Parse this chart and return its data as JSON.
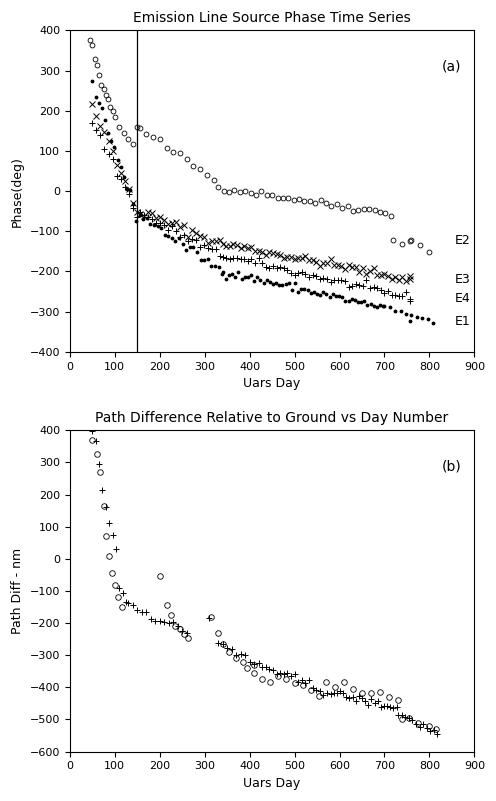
{
  "title_a": "Emission Line Source Phase Time Series",
  "title_b": "Path Difference Relative to Ground vs Day Number",
  "xlabel": "Uars Day",
  "ylabel_a": "Phase(deg)",
  "ylabel_b": "Path Diff - nm",
  "xlim": [
    0,
    900
  ],
  "ylim_a": [
    -400,
    400
  ],
  "ylim_b": [
    -600,
    400
  ],
  "xticks": [
    0,
    100,
    200,
    300,
    400,
    500,
    600,
    700,
    800,
    900
  ],
  "yticks_a": [
    -400,
    -300,
    -200,
    -100,
    0,
    100,
    200,
    300,
    400
  ],
  "yticks_b": [
    -600,
    -500,
    -400,
    -300,
    -200,
    -100,
    0,
    100,
    200,
    300,
    400
  ],
  "vline_x": 150,
  "label_a": "(a)",
  "label_b": "(b)",
  "background_color": "#ffffff"
}
